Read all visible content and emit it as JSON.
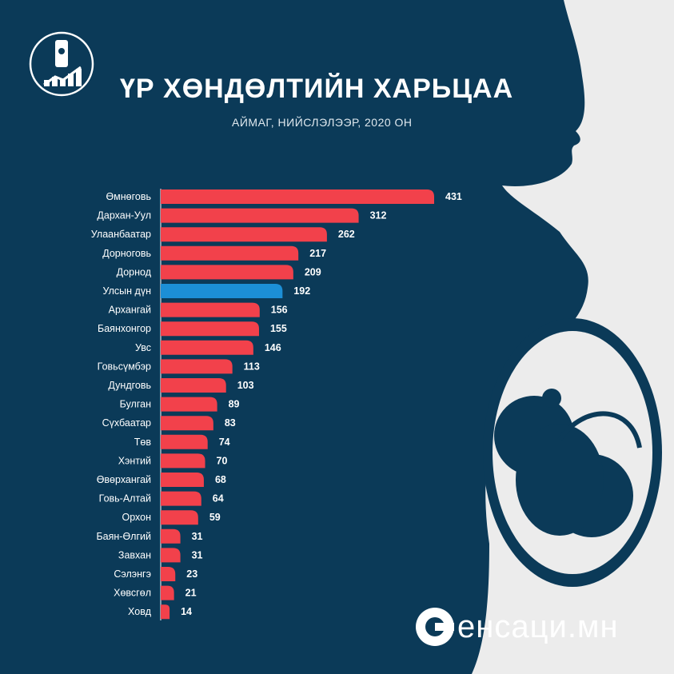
{
  "title": "ҮР ХӨНДӨЛТИЙН ХАРЬЦАА",
  "subtitle": "АЙМАГ, НИЙСЛЭЛЭЭР, 2020 ОН",
  "brand": "енсаци.мн",
  "colors": {
    "background": "#0b3a58",
    "silhouette": "#ececec",
    "bar_region": "#f2414b",
    "bar_national": "#1c8fd6",
    "national_label": "#2ba6ee"
  },
  "chart_data": {
    "type": "bar",
    "orientation": "horizontal",
    "categories": [
      "Өмнөговь",
      "Дархан-Уул",
      "Улаанбаатар",
      "Дорноговь",
      "Дорнод",
      "Улсын дүн",
      "Архангай",
      "Баянхонгор",
      "Увс",
      "Говьсүмбэр",
      "Дундговь",
      "Булган",
      "Сүхбаатар",
      "Төв",
      "Хэнтий",
      "Өвөрхангай",
      "Говь-Алтай",
      "Орхон",
      "Баян-Өлгий",
      "Завхан",
      "Сэлэнгэ",
      "Хөвсгөл",
      "Ховд"
    ],
    "values": [
      431,
      312,
      262,
      217,
      209,
      192,
      156,
      155,
      146,
      113,
      103,
      89,
      83,
      74,
      70,
      68,
      64,
      59,
      31,
      31,
      23,
      21,
      14
    ],
    "highlight": "Улсын дүн",
    "title": "ҮР ХӨНДӨЛТИЙН ХАРЬЦАА",
    "subtitle": "АЙМАГ, НИЙСЛЭЛЭЭР, 2020 ОН",
    "xlabel": "",
    "ylabel": "",
    "xlim": [
      0,
      431
    ],
    "grid": false,
    "legend": "none"
  }
}
